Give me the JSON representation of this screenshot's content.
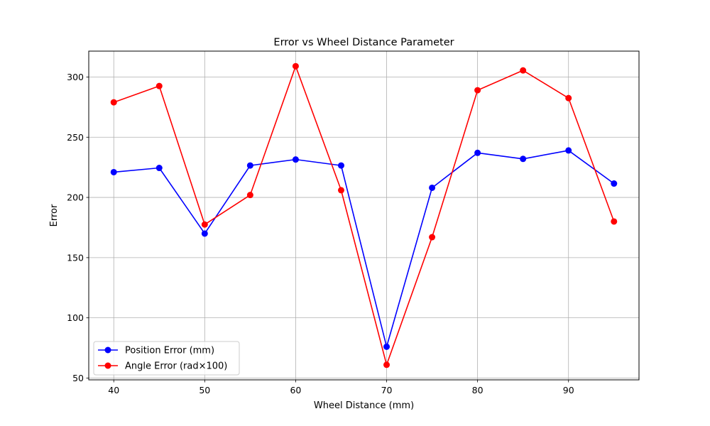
{
  "chart_data": {
    "type": "line",
    "title": "Error vs Wheel Distance Parameter",
    "xlabel": "Wheel Distance (mm)",
    "ylabel": "Error",
    "x": [
      40,
      45,
      50,
      55,
      60,
      65,
      70,
      75,
      80,
      85,
      90,
      95
    ],
    "xlim": [
      37.25,
      97.75
    ],
    "ylim": [
      48.5,
      321.5
    ],
    "xticks": [
      40,
      50,
      60,
      70,
      80,
      90
    ],
    "yticks": [
      50,
      100,
      150,
      200,
      250,
      300
    ],
    "grid": true,
    "legend_position": "lower-left",
    "series": [
      {
        "name": "Position Error (mm)",
        "color": "#0000ff",
        "marker": "circle",
        "values": [
          221,
          224.5,
          170,
          226.5,
          231.5,
          226.5,
          76,
          208,
          237,
          232,
          239,
          211.5
        ]
      },
      {
        "name": "Angle Error (rad×100)",
        "color": "#ff0000",
        "marker": "circle",
        "values": [
          279,
          292.5,
          177.5,
          202,
          309,
          206,
          61,
          167,
          289,
          305.5,
          282.5,
          180
        ]
      }
    ]
  }
}
